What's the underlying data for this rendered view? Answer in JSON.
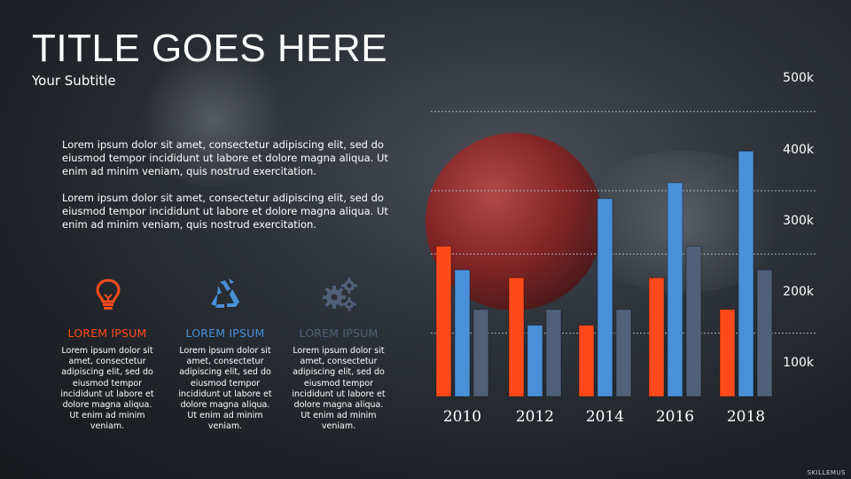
{
  "slide": {
    "title": "TITLE GOES HERE",
    "subtitle": "Your Subtitle",
    "paragraphs": [
      "Lorem ipsum dolor sit amet, consectetur adipiscing elit, sed do eiusmod tempor incididunt ut labore et dolore magna aliqua. Ut enim ad minim veniam, quis nostrud exercitation.",
      "Lorem ipsum dolor sit amet, consectetur adipiscing elit, sed do eiusmod tempor incididunt ut labore et dolore magna aliqua. Ut enim ad minim veniam, quis nostrud exercitation."
    ],
    "features": [
      {
        "icon": "lightbulb-icon",
        "heading": "LOREM IPSUM",
        "color": "#ff4a1c",
        "text": "Lorem ipsum dolor sit amet, consectetur adipiscing elit, sed do eiusmod tempor incididunt ut labore et dolore magna aliqua. Ut enim ad minim veniam."
      },
      {
        "icon": "recycle-icon",
        "heading": "LOREM IPSUM",
        "color": "#4a90d9",
        "text": "Lorem ipsum dolor sit amet, consectetur adipiscing elit, sed do eiusmod tempor incididunt ut labore et dolore magna aliqua. Ut enim ad minim veniam."
      },
      {
        "icon": "gears-icon",
        "heading": "LOREM IPSUM",
        "color": "#4f6078",
        "text": "Lorem ipsum dolor sit amet, consectetur adipiscing elit, sed do eiusmod tempor incididunt ut labore et dolore magna aliqua. Ut enim ad minim veniam."
      }
    ],
    "watermark": "SKILLEMUS"
  },
  "chart_data": {
    "type": "bar",
    "categories": [
      "2010",
      "2012",
      "2014",
      "2016",
      "2018"
    ],
    "series": [
      {
        "values": [
          270,
          230,
          170,
          230,
          190
        ],
        "color": "#ff4a1c"
      },
      {
        "values": [
          240,
          170,
          330,
          350,
          390
        ],
        "color": "#4a90d9"
      },
      {
        "values": [
          190,
          190,
          190,
          270,
          240
        ],
        "color": "#4f6078"
      }
    ],
    "y_tick_labels": [
      "100k",
      "200k",
      "300k",
      "400k",
      "500k"
    ],
    "ylim": [
      80,
      480
    ],
    "grid": true,
    "gridline_values": [
      160,
      260,
      340,
      440
    ]
  }
}
